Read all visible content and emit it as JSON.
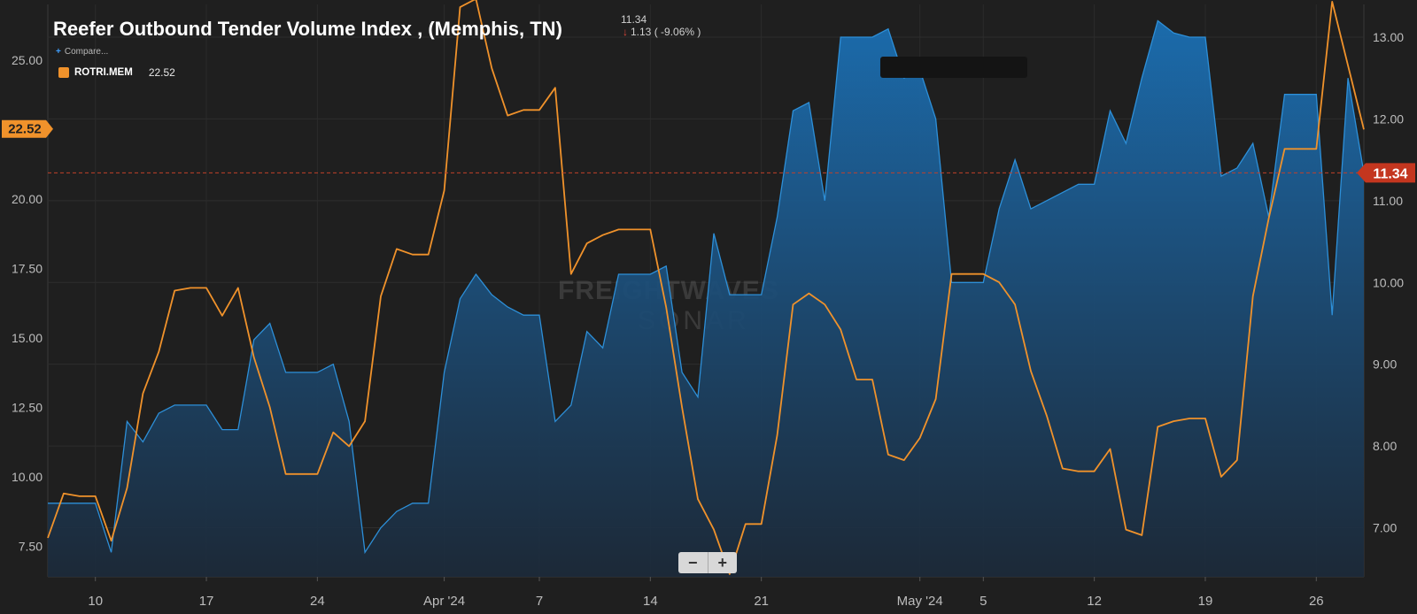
{
  "header": {
    "title": "Reefer Outbound Tender Volume Index , (Memphis, TN)",
    "last_value": "11.34",
    "change": "1.13 ( -9.06% )",
    "compare_label": "Compare...",
    "legend_name": "ROTRI.MEM",
    "legend_value": "22.52"
  },
  "watermark": {
    "line1": "FREIGHTWAVES",
    "line2": "SONAR"
  },
  "zoom": {
    "minus": "−",
    "plus": "+"
  },
  "chart_data": {
    "type": "line",
    "x_start": "2024-03-07",
    "x_end": "2024-05-29",
    "x_ticks": [
      {
        "date": "2024-03-10",
        "label": "10"
      },
      {
        "date": "2024-03-17",
        "label": "17"
      },
      {
        "date": "2024-03-24",
        "label": "24"
      },
      {
        "date": "2024-04-01",
        "label": "Apr '24"
      },
      {
        "date": "2024-04-07",
        "label": "7"
      },
      {
        "date": "2024-04-14",
        "label": "14"
      },
      {
        "date": "2024-04-21",
        "label": "21"
      },
      {
        "date": "2024-05-01",
        "label": "May '24"
      },
      {
        "date": "2024-05-05",
        "label": "5"
      },
      {
        "date": "2024-05-12",
        "label": "12"
      },
      {
        "date": "2024-05-19",
        "label": "19"
      },
      {
        "date": "2024-05-26",
        "label": "26"
      }
    ],
    "left_axis": {
      "ticks": [
        "7.50",
        "10.00",
        "12.50",
        "15.00",
        "17.50",
        "20.00",
        "25.00"
      ],
      "range": [
        6.4,
        27.0
      ]
    },
    "right_axis": {
      "ticks": [
        "7.00",
        "8.00",
        "9.00",
        "10.00",
        "11.00",
        "12.00",
        "13.00"
      ],
      "range": [
        6.4,
        13.4
      ]
    },
    "series": [
      {
        "name": "ROTRI.MEM",
        "axis": "left",
        "color": "#f0922b",
        "style": "line",
        "last_label": "22.52",
        "points": [
          [
            "2024-03-07",
            7.8
          ],
          [
            "2024-03-08",
            9.4
          ],
          [
            "2024-03-09",
            9.3
          ],
          [
            "2024-03-10",
            9.3
          ],
          [
            "2024-03-11",
            7.7
          ],
          [
            "2024-03-12",
            9.6
          ],
          [
            "2024-03-13",
            13.0
          ],
          [
            "2024-03-14",
            14.5
          ],
          [
            "2024-03-15",
            16.7
          ],
          [
            "2024-03-16",
            16.8
          ],
          [
            "2024-03-17",
            16.8
          ],
          [
            "2024-03-18",
            15.8
          ],
          [
            "2024-03-19",
            16.8
          ],
          [
            "2024-03-20",
            14.3
          ],
          [
            "2024-03-21",
            12.5
          ],
          [
            "2024-03-22",
            10.1
          ],
          [
            "2024-03-23",
            10.1
          ],
          [
            "2024-03-24",
            10.1
          ],
          [
            "2024-03-25",
            11.6
          ],
          [
            "2024-03-26",
            11.1
          ],
          [
            "2024-03-27",
            12.0
          ],
          [
            "2024-03-28",
            16.5
          ],
          [
            "2024-03-29",
            18.2
          ],
          [
            "2024-03-30",
            18.0
          ],
          [
            "2024-03-31",
            18.0
          ],
          [
            "2024-04-01",
            20.3
          ],
          [
            "2024-04-02",
            26.9
          ],
          [
            "2024-04-03",
            27.2
          ],
          [
            "2024-04-04",
            24.7
          ],
          [
            "2024-04-05",
            23.0
          ],
          [
            "2024-04-06",
            23.2
          ],
          [
            "2024-04-07",
            23.2
          ],
          [
            "2024-04-08",
            24.0
          ],
          [
            "2024-04-09",
            17.3
          ],
          [
            "2024-04-10",
            18.4
          ],
          [
            "2024-04-11",
            18.7
          ],
          [
            "2024-04-12",
            18.9
          ],
          [
            "2024-04-13",
            18.9
          ],
          [
            "2024-04-14",
            18.9
          ],
          [
            "2024-04-15",
            16.1
          ],
          [
            "2024-04-16",
            12.5
          ],
          [
            "2024-04-17",
            9.2
          ],
          [
            "2024-04-18",
            8.1
          ],
          [
            "2024-04-19",
            6.5
          ],
          [
            "2024-04-20",
            8.3
          ],
          [
            "2024-04-21",
            8.3
          ],
          [
            "2024-04-22",
            11.5
          ],
          [
            "2024-04-23",
            16.2
          ],
          [
            "2024-04-24",
            16.6
          ],
          [
            "2024-04-25",
            16.2
          ],
          [
            "2024-04-26",
            15.3
          ],
          [
            "2024-04-27",
            13.5
          ],
          [
            "2024-04-28",
            13.5
          ],
          [
            "2024-04-29",
            10.8
          ],
          [
            "2024-04-30",
            10.6
          ],
          [
            "2024-05-01",
            11.4
          ],
          [
            "2024-05-02",
            12.8
          ],
          [
            "2024-05-03",
            17.3
          ],
          [
            "2024-05-04",
            17.3
          ],
          [
            "2024-05-05",
            17.3
          ],
          [
            "2024-05-06",
            17.0
          ],
          [
            "2024-05-07",
            16.2
          ],
          [
            "2024-05-08",
            13.8
          ],
          [
            "2024-05-09",
            12.2
          ],
          [
            "2024-05-10",
            10.3
          ],
          [
            "2024-05-11",
            10.2
          ],
          [
            "2024-05-12",
            10.2
          ],
          [
            "2024-05-13",
            11.0
          ],
          [
            "2024-05-14",
            8.1
          ],
          [
            "2024-05-15",
            7.9
          ],
          [
            "2024-05-16",
            11.8
          ],
          [
            "2024-05-17",
            12.0
          ],
          [
            "2024-05-18",
            12.1
          ],
          [
            "2024-05-19",
            12.1
          ],
          [
            "2024-05-20",
            10.0
          ],
          [
            "2024-05-21",
            10.6
          ],
          [
            "2024-05-22",
            16.5
          ],
          [
            "2024-05-23",
            19.3
          ],
          [
            "2024-05-24",
            21.8
          ],
          [
            "2024-05-25",
            21.8
          ],
          [
            "2024-05-26",
            21.8
          ],
          [
            "2024-05-27",
            27.1
          ],
          [
            "2024-05-28",
            24.8
          ],
          [
            "2024-05-29",
            22.5
          ]
        ]
      },
      {
        "axis": "right",
        "color": "#2d8fd8",
        "style": "area",
        "last_label": "11.34",
        "points": [
          [
            "2024-03-07",
            7.3
          ],
          [
            "2024-03-08",
            7.3
          ],
          [
            "2024-03-09",
            7.3
          ],
          [
            "2024-03-10",
            7.3
          ],
          [
            "2024-03-11",
            6.7
          ],
          [
            "2024-03-12",
            8.3
          ],
          [
            "2024-03-13",
            8.05
          ],
          [
            "2024-03-14",
            8.4
          ],
          [
            "2024-03-15",
            8.5
          ],
          [
            "2024-03-16",
            8.5
          ],
          [
            "2024-03-17",
            8.5
          ],
          [
            "2024-03-18",
            8.2
          ],
          [
            "2024-03-19",
            8.2
          ],
          [
            "2024-03-20",
            9.3
          ],
          [
            "2024-03-21",
            9.5
          ],
          [
            "2024-03-22",
            8.9
          ],
          [
            "2024-03-23",
            8.9
          ],
          [
            "2024-03-24",
            8.9
          ],
          [
            "2024-03-25",
            9.0
          ],
          [
            "2024-03-26",
            8.3
          ],
          [
            "2024-03-27",
            6.7
          ],
          [
            "2024-03-28",
            7.0
          ],
          [
            "2024-03-29",
            7.2
          ],
          [
            "2024-03-30",
            7.3
          ],
          [
            "2024-03-31",
            7.3
          ],
          [
            "2024-04-01",
            8.9
          ],
          [
            "2024-04-02",
            9.8
          ],
          [
            "2024-04-03",
            10.1
          ],
          [
            "2024-04-04",
            9.85
          ],
          [
            "2024-04-05",
            9.7
          ],
          [
            "2024-04-06",
            9.6
          ],
          [
            "2024-04-07",
            9.6
          ],
          [
            "2024-04-08",
            8.3
          ],
          [
            "2024-04-09",
            8.5
          ],
          [
            "2024-04-10",
            9.4
          ],
          [
            "2024-04-11",
            9.2
          ],
          [
            "2024-04-12",
            10.1
          ],
          [
            "2024-04-13",
            10.1
          ],
          [
            "2024-04-14",
            10.1
          ],
          [
            "2024-04-15",
            10.2
          ],
          [
            "2024-04-16",
            8.9
          ],
          [
            "2024-04-17",
            8.6
          ],
          [
            "2024-04-18",
            10.6
          ],
          [
            "2024-04-19",
            9.85
          ],
          [
            "2024-04-20",
            9.85
          ],
          [
            "2024-04-21",
            9.85
          ],
          [
            "2024-04-22",
            10.8
          ],
          [
            "2024-04-23",
            12.1
          ],
          [
            "2024-04-24",
            12.2
          ],
          [
            "2024-04-25",
            11.0
          ],
          [
            "2024-04-26",
            13.0
          ],
          [
            "2024-04-27",
            13.0
          ],
          [
            "2024-04-28",
            13.0
          ],
          [
            "2024-04-29",
            13.1
          ],
          [
            "2024-04-30",
            12.5
          ],
          [
            "2024-05-01",
            12.6
          ],
          [
            "2024-05-02",
            12.0
          ],
          [
            "2024-05-03",
            10.0
          ],
          [
            "2024-05-04",
            10.0
          ],
          [
            "2024-05-05",
            10.0
          ],
          [
            "2024-05-06",
            10.9
          ],
          [
            "2024-05-07",
            11.5
          ],
          [
            "2024-05-08",
            10.9
          ],
          [
            "2024-05-09",
            11.0
          ],
          [
            "2024-05-10",
            11.1
          ],
          [
            "2024-05-11",
            11.2
          ],
          [
            "2024-05-12",
            11.2
          ],
          [
            "2024-05-13",
            12.1
          ],
          [
            "2024-05-14",
            11.7
          ],
          [
            "2024-05-15",
            12.5
          ],
          [
            "2024-05-16",
            13.2
          ],
          [
            "2024-05-17",
            13.05
          ],
          [
            "2024-05-18",
            13.0
          ],
          [
            "2024-05-19",
            13.0
          ],
          [
            "2024-05-20",
            11.3
          ],
          [
            "2024-05-21",
            11.4
          ],
          [
            "2024-05-22",
            11.7
          ],
          [
            "2024-05-23",
            10.8
          ],
          [
            "2024-05-24",
            12.3
          ],
          [
            "2024-05-25",
            12.3
          ],
          [
            "2024-05-26",
            12.3
          ],
          [
            "2024-05-27",
            9.6
          ],
          [
            "2024-05-28",
            12.5
          ],
          [
            "2024-05-29",
            11.34
          ]
        ]
      }
    ],
    "reference_line": {
      "axis": "right",
      "value": 11.34,
      "style": "dashed",
      "color": "#c0402a"
    }
  }
}
